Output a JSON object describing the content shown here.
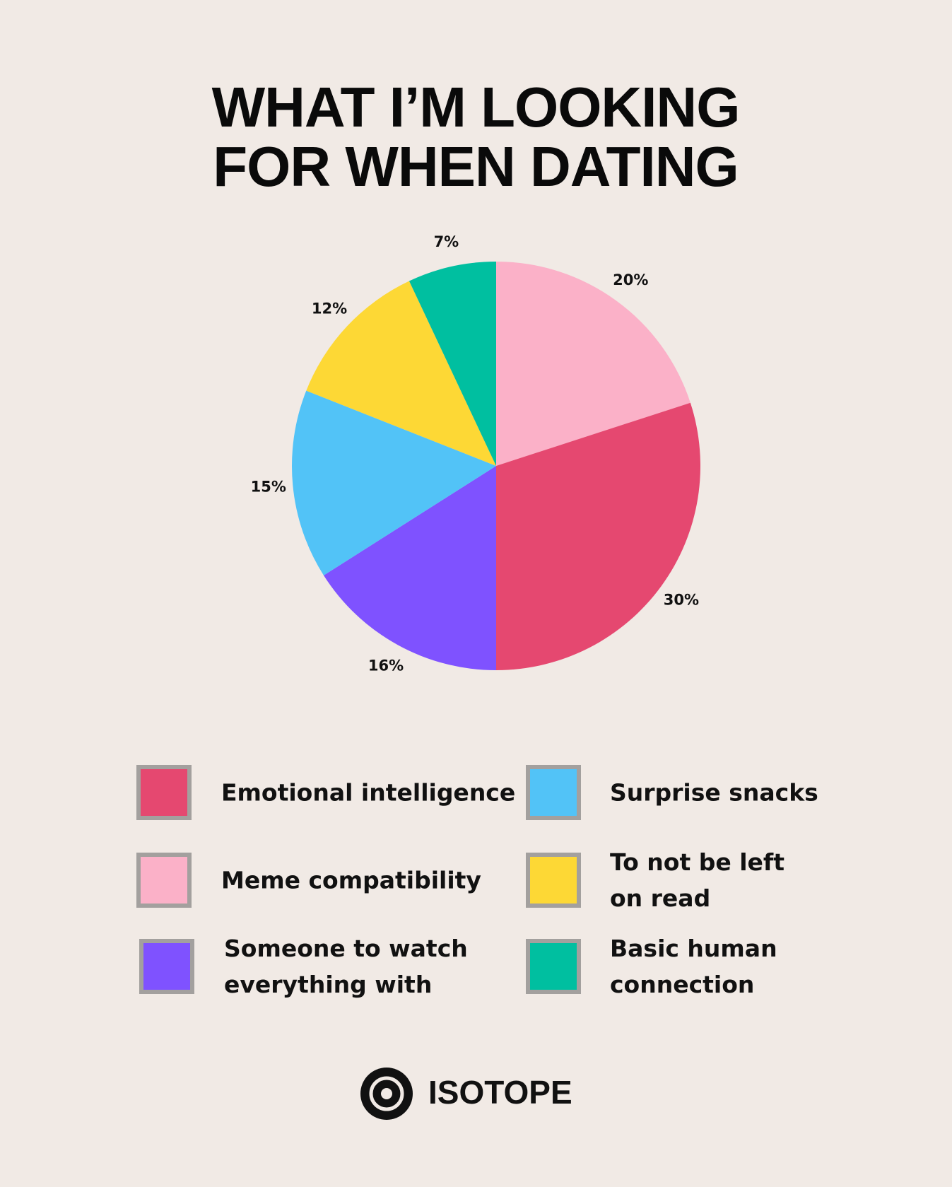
{
  "chart_data": {
    "type": "pie",
    "title": "WHAT I’M LOOKING FOR WHEN DATING",
    "categories": [
      "Meme compatibility",
      "Emotional intelligence",
      "Someone to watch everything with",
      "Surprise snacks",
      "To not be left on read",
      "Basic human connection"
    ],
    "values": [
      20,
      30,
      16,
      15,
      12,
      7
    ],
    "value_labels": [
      "20%",
      "30%",
      "16%",
      "15%",
      "12%",
      "7%"
    ],
    "colors": [
      "#fbb1c8",
      "#e54870",
      "#7f52ff",
      "#52c3f7",
      "#fdd835",
      "#00bfa0"
    ]
  },
  "logo": "ISOTOPE"
}
